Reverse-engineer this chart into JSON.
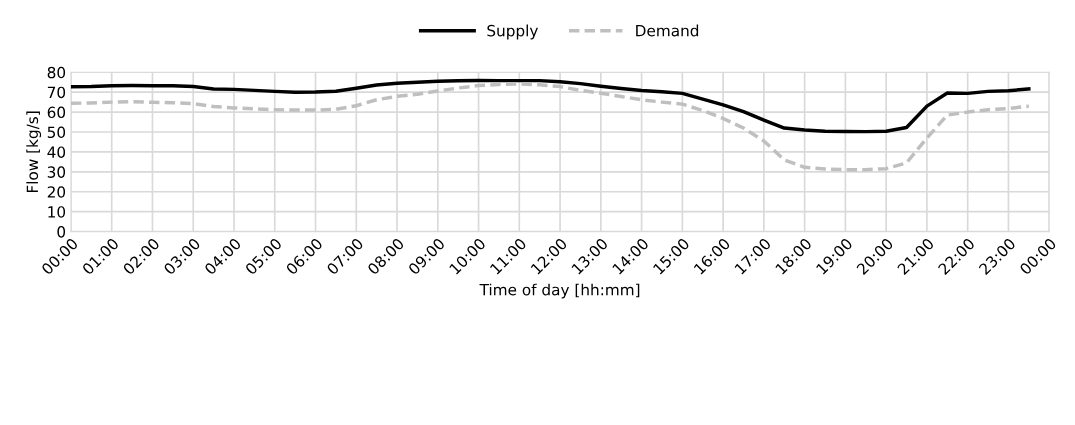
{
  "chart_data": {
    "type": "line",
    "xlabel": "Time of day [hh:mm]",
    "ylabel": "Flow [kg/s]",
    "x": [
      0,
      0.5,
      1,
      1.5,
      2,
      2.5,
      3,
      3.5,
      4,
      4.5,
      5,
      5.5,
      6,
      6.5,
      7,
      7.5,
      8,
      8.5,
      9,
      9.5,
      10,
      10.5,
      11,
      11.5,
      12,
      12.5,
      13,
      13.5,
      14,
      14.5,
      15,
      15.5,
      16,
      16.5,
      17,
      17.5,
      18,
      18.5,
      19,
      19.5,
      20,
      20.5,
      21,
      21.5,
      22,
      22.5,
      23,
      23.5
    ],
    "series": [
      {
        "name": "Supply",
        "color": "#000000",
        "line_style": "solid",
        "values": [
          72.7,
          72.8,
          73.2,
          73.3,
          73.2,
          73.2,
          72.8,
          71.6,
          71.4,
          70.9,
          70.4,
          70.0,
          70.1,
          70.5,
          72.0,
          73.6,
          74.5,
          75.0,
          75.5,
          75.7,
          75.9,
          75.8,
          75.8,
          75.8,
          75.2,
          74.3,
          73.0,
          71.8,
          70.8,
          70.2,
          69.4,
          66.5,
          63.6,
          60.2,
          56.0,
          52.0,
          51.0,
          50.4,
          50.3,
          50.2,
          50.4,
          52.3,
          63.0,
          69.6,
          69.4,
          70.4,
          70.7,
          71.6
        ]
      },
      {
        "name": "Demand",
        "color": "#bfbfbf",
        "line_style": "dashed",
        "values": [
          64.4,
          64.6,
          65.0,
          65.2,
          64.9,
          64.7,
          64.3,
          62.8,
          62.1,
          61.6,
          61.2,
          61.0,
          61.0,
          61.4,
          63.2,
          66.2,
          67.9,
          69.0,
          70.6,
          72.1,
          73.3,
          73.9,
          74.1,
          73.7,
          72.8,
          70.9,
          69.5,
          67.8,
          66.2,
          65.0,
          64.0,
          60.8,
          56.8,
          52.0,
          45.5,
          36.0,
          32.3,
          31.4,
          31.1,
          31.1,
          31.6,
          34.5,
          47.0,
          58.5,
          60.0,
          61.2,
          61.8,
          63.0
        ]
      }
    ],
    "xlim": [
      0,
      24
    ],
    "xticks": [
      {
        "value": 0,
        "label": "00:00"
      },
      {
        "value": 1,
        "label": "01:00"
      },
      {
        "value": 2,
        "label": "02:00"
      },
      {
        "value": 3,
        "label": "03:00"
      },
      {
        "value": 4,
        "label": "04:00"
      },
      {
        "value": 5,
        "label": "05:00"
      },
      {
        "value": 6,
        "label": "06:00"
      },
      {
        "value": 7,
        "label": "07:00"
      },
      {
        "value": 8,
        "label": "08:00"
      },
      {
        "value": 9,
        "label": "09:00"
      },
      {
        "value": 10,
        "label": "10:00"
      },
      {
        "value": 11,
        "label": "11:00"
      },
      {
        "value": 12,
        "label": "12:00"
      },
      {
        "value": 13,
        "label": "13:00"
      },
      {
        "value": 14,
        "label": "14:00"
      },
      {
        "value": 15,
        "label": "15:00"
      },
      {
        "value": 16,
        "label": "16:00"
      },
      {
        "value": 17,
        "label": "17:00"
      },
      {
        "value": 18,
        "label": "18:00"
      },
      {
        "value": 19,
        "label": "19:00"
      },
      {
        "value": 20,
        "label": "20:00"
      },
      {
        "value": 21,
        "label": "21:00"
      },
      {
        "value": 22,
        "label": "22:00"
      },
      {
        "value": 23,
        "label": "23:00"
      },
      {
        "value": 24,
        "label": "00:00"
      }
    ],
    "ylim": [
      0,
      80
    ],
    "yticks": [
      0,
      10,
      20,
      30,
      40,
      50,
      60,
      70,
      80
    ],
    "grid": true,
    "legend": "top",
    "marker": "none"
  }
}
